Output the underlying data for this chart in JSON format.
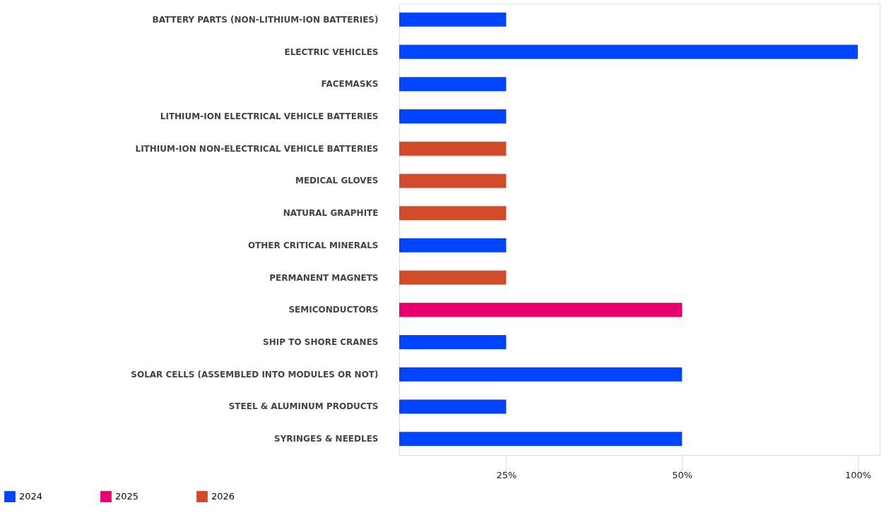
{
  "chart_data": {
    "type": "bar",
    "orientation": "horizontal",
    "log": "x",
    "categories": [
      "BATTERY PARTS (NON-LITHIUM-ION BATTERIES)",
      "ELECTRIC VEHICLES",
      "FACEMASKS",
      "LITHIUM-ION ELECTRICAL VEHICLE BATTERIES",
      "LITHIUM-ION NON-ELECTRICAL VEHICLE BATTERIES",
      "MEDICAL GLOVES",
      "NATURAL GRAPHITE",
      "OTHER CRITICAL MINERALS",
      "PERMANENT MAGNETS",
      "SEMICONDUCTORS",
      "SHIP TO SHORE CRANES",
      "SOLAR CELLS (ASSEMBLED INTO MODULES OR NOT)",
      "STEEL & ALUMINUM PRODUCTS",
      "SYRINGES & NEEDLES"
    ],
    "series": [
      {
        "name": "2024",
        "color": "#0044ff",
        "values": [
          25,
          100,
          25,
          25,
          null,
          null,
          null,
          25,
          null,
          null,
          25,
          50,
          25,
          50
        ]
      },
      {
        "name": "2025",
        "color": "#e8006e",
        "values": [
          null,
          null,
          null,
          null,
          null,
          null,
          null,
          null,
          null,
          50,
          null,
          null,
          null,
          null
        ]
      },
      {
        "name": "2026",
        "color": "#d04b2a",
        "values": [
          null,
          null,
          null,
          null,
          25,
          25,
          25,
          null,
          25,
          null,
          null,
          null,
          null,
          null
        ]
      }
    ],
    "xlim": [
      16.4,
      109
    ],
    "xticks": [
      {
        "value": 25,
        "label": "25%"
      },
      {
        "value": 50,
        "label": "50%"
      },
      {
        "value": 100,
        "label": "100%"
      }
    ],
    "grid": false,
    "legend": "bottom left"
  }
}
